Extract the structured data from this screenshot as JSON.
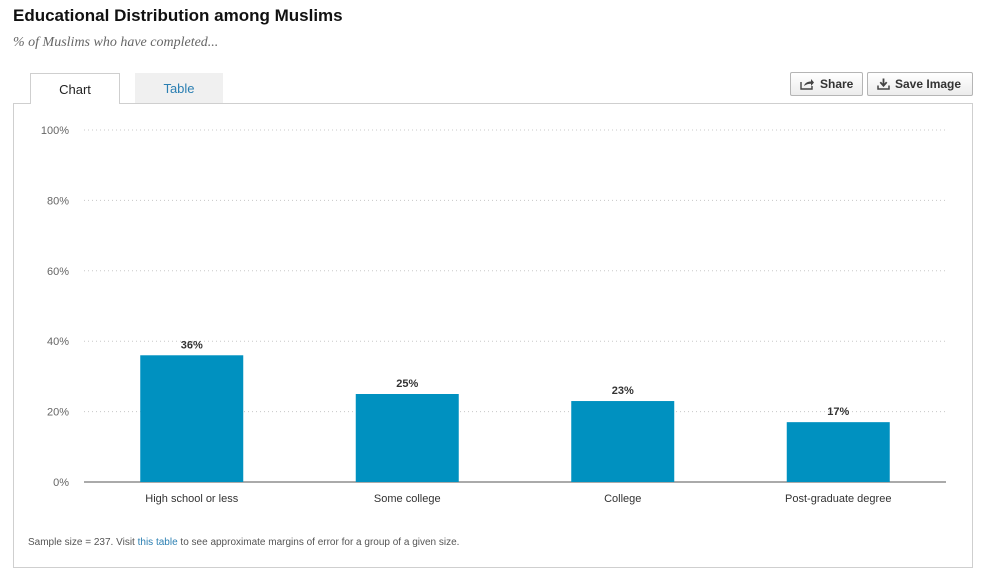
{
  "header": {
    "title": "Educational Distribution among Muslims",
    "subtitle": "% of Muslims who have completed..."
  },
  "tabs": [
    {
      "label": "Chart",
      "active": true
    },
    {
      "label": "Table",
      "active": false
    }
  ],
  "toolbar": {
    "share_label": "Share",
    "share_icon": "share-icon",
    "save_label": "Save Image",
    "save_icon": "download-icon"
  },
  "colors": {
    "bar": "#0091c0",
    "link": "#2b7fb2",
    "gridline": "#c8c8c8"
  },
  "chart_data": {
    "type": "bar",
    "title": "Educational Distribution among Muslims",
    "subtitle": "% of Muslims who have completed...",
    "categories": [
      "High school or less",
      "Some college",
      "College",
      "Post-graduate degree"
    ],
    "values": [
      36,
      25,
      23,
      17
    ],
    "value_labels": [
      "36%",
      "25%",
      "23%",
      "17%"
    ],
    "y_ticks": [
      0,
      20,
      40,
      60,
      80,
      100
    ],
    "y_tick_labels": [
      "0%",
      "20%",
      "40%",
      "60%",
      "80%",
      "100%"
    ],
    "ylim": [
      0,
      100
    ],
    "xlabel": "",
    "ylabel": "",
    "grid": true,
    "legend": "none"
  },
  "footnote": {
    "before": "Sample size = 237. Visit ",
    "link": "this table",
    "after": " to see approximate margins of error for a group of a given size."
  }
}
